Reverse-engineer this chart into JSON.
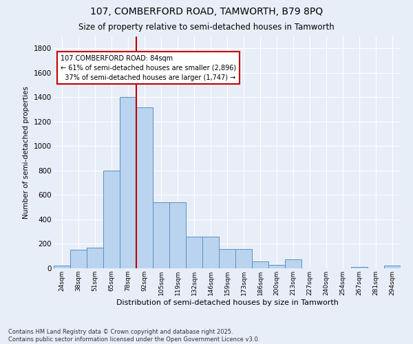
{
  "title1": "107, COMBERFORD ROAD, TAMWORTH, B79 8PQ",
  "title2": "Size of property relative to semi-detached houses in Tamworth",
  "xlabel": "Distribution of semi-detached houses by size in Tamworth",
  "ylabel": "Number of semi-detached properties",
  "categories": [
    "24sqm",
    "38sqm",
    "51sqm",
    "65sqm",
    "78sqm",
    "92sqm",
    "105sqm",
    "119sqm",
    "132sqm",
    "146sqm",
    "159sqm",
    "173sqm",
    "186sqm",
    "200sqm",
    "213sqm",
    "227sqm",
    "240sqm",
    "254sqm",
    "267sqm",
    "281sqm",
    "294sqm"
  ],
  "values": [
    20,
    150,
    170,
    800,
    1400,
    1320,
    540,
    540,
    260,
    260,
    155,
    155,
    55,
    30,
    75,
    0,
    0,
    0,
    10,
    0,
    20
  ],
  "bar_color": "#bad4ef",
  "bar_edge_color": "#5b8ec4",
  "property_label": "107 COMBERFORD ROAD: 84sqm",
  "pct_smaller": 61,
  "pct_larger": 37,
  "n_smaller": 2896,
  "n_larger": 1747,
  "vline_color": "#c00000",
  "annotation_box_edgecolor": "#c00000",
  "ylim": [
    0,
    1900
  ],
  "yticks": [
    0,
    200,
    400,
    600,
    800,
    1000,
    1200,
    1400,
    1600,
    1800
  ],
  "footnote1": "Contains HM Land Registry data © Crown copyright and database right 2025.",
  "footnote2": "Contains public sector information licensed under the Open Government Licence v3.0.",
  "bg_color": "#e8eef8"
}
